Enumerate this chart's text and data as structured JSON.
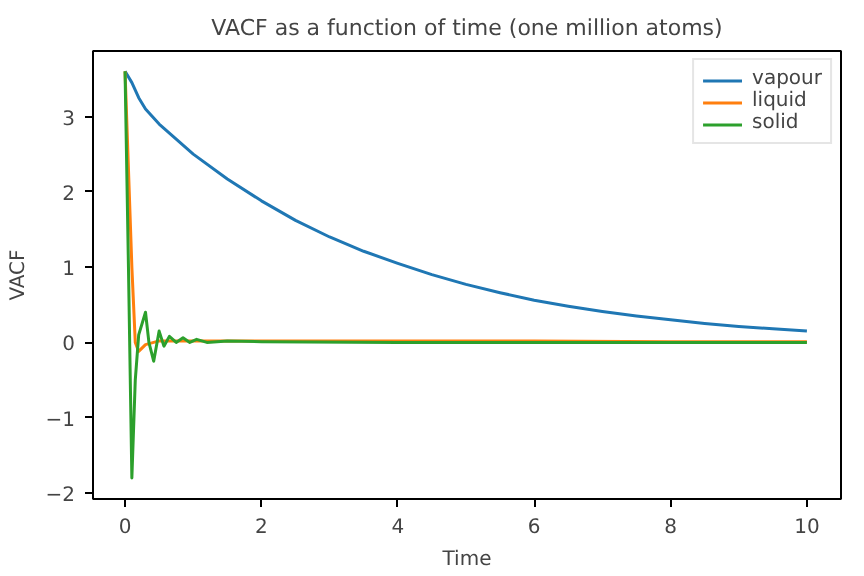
{
  "chart_data": {
    "type": "line",
    "title": "VACF as a function of time (one million atoms)",
    "xlabel": "Time",
    "ylabel": "VACF",
    "xlim": [
      -0.47,
      10.5
    ],
    "ylim": [
      -2.08,
      3.87
    ],
    "xticks": [
      0,
      2,
      4,
      6,
      8,
      10
    ],
    "yticks": [
      -2,
      -1,
      0,
      1,
      2,
      3
    ],
    "grid": false,
    "legend": "top right",
    "series": [
      {
        "name": "vapour",
        "color": "#1f77b4",
        "x": [
          0,
          0.1,
          0.2,
          0.3,
          0.5,
          0.75,
          1,
          1.5,
          2,
          2.5,
          3,
          3.5,
          4,
          4.5,
          5,
          5.5,
          6,
          6.5,
          7,
          7.5,
          8,
          8.5,
          9,
          9.5,
          10
        ],
        "values": [
          3.6,
          3.45,
          3.25,
          3.1,
          2.9,
          2.7,
          2.5,
          2.17,
          1.88,
          1.62,
          1.4,
          1.21,
          1.05,
          0.9,
          0.77,
          0.66,
          0.56,
          0.48,
          0.41,
          0.35,
          0.3,
          0.25,
          0.21,
          0.18,
          0.15
        ]
      },
      {
        "name": "liquid",
        "color": "#ff7f0e",
        "x": [
          0,
          0.1,
          0.15,
          0.2,
          0.3,
          0.5,
          1,
          2,
          4,
          6,
          8,
          10
        ],
        "values": [
          3.6,
          1.0,
          0.0,
          -0.12,
          -0.03,
          0.02,
          0.02,
          0.02,
          0.02,
          0.02,
          0.01,
          0.01
        ]
      },
      {
        "name": "solid",
        "color": "#2ca02c",
        "x": [
          0,
          0.05,
          0.1,
          0.15,
          0.2,
          0.3,
          0.35,
          0.42,
          0.5,
          0.57,
          0.65,
          0.75,
          0.85,
          0.95,
          1.05,
          1.2,
          1.5,
          2,
          4,
          6,
          8,
          10
        ],
        "values": [
          3.6,
          1.0,
          -1.8,
          -0.5,
          0.1,
          0.4,
          0.0,
          -0.25,
          0.15,
          -0.05,
          0.08,
          0.0,
          0.06,
          0.0,
          0.04,
          0.0,
          0.02,
          0.01,
          0.0,
          0.0,
          0.0,
          0.0
        ]
      }
    ]
  }
}
